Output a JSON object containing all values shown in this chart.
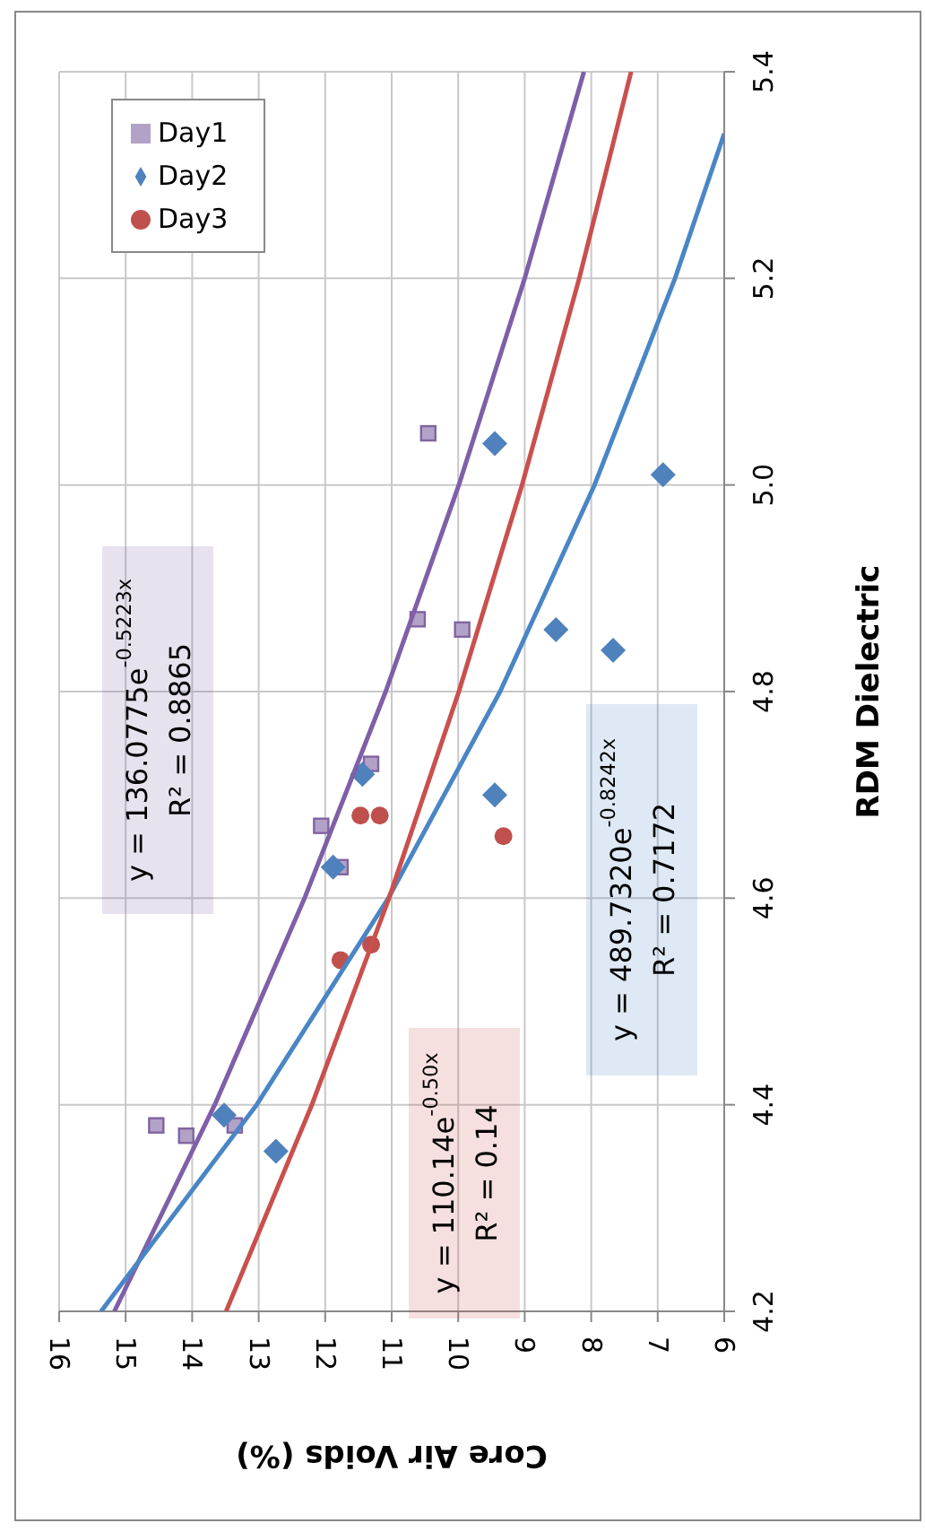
{
  "chart_data": {
    "type": "scatter",
    "xlabel": "Core Air Voids (%)",
    "ylabel": "RDM Dielectric",
    "xlim": [
      16,
      6
    ],
    "xticks": [
      16,
      15,
      14,
      13,
      12,
      11,
      10,
      9,
      8,
      7,
      6
    ],
    "ylim": [
      4.2,
      5.4
    ],
    "yticks": [
      4.2,
      4.4,
      4.6,
      4.8,
      {
        "value": 5,
        "label": "5.0"
      },
      5.2,
      5.4
    ],
    "grid": true,
    "legend": "top left",
    "series": [
      {
        "name": "Day1",
        "marker": "square",
        "color": "#b3a2c7",
        "x": [
          10.45,
          10.61,
          9.94,
          11.31,
          12.06,
          11.77,
          14.54,
          14.09,
          13.36
        ],
        "values": [
          5.05,
          4.87,
          4.86,
          4.73,
          4.67,
          4.63,
          4.38,
          4.37,
          4.38
        ]
      },
      {
        "name": "Day2",
        "marker": "diamond",
        "color": "#4f81bd",
        "x": [
          9.45,
          6.92,
          8.53,
          7.67,
          11.44,
          9.45,
          11.88,
          13.52,
          12.74
        ],
        "values": [
          5.04,
          5.01,
          4.86,
          4.84,
          4.72,
          4.7,
          4.63,
          4.39,
          4.355
        ]
      },
      {
        "name": "Day3",
        "marker": "circle",
        "color": "#c0504d",
        "x": [
          11.47,
          11.18,
          9.32,
          11.77,
          11.31
        ],
        "values": [
          4.68,
          4.68,
          4.66,
          4.54,
          4.555
        ]
      },
      {
        "type": "line",
        "marker": "none",
        "color": "#7f5fa8",
        "x": [
          15.17,
          13.66,
          12.31,
          11.09,
          9.99,
          9.0,
          8.11
        ],
        "values": [
          4.2,
          4.4,
          4.6,
          4.8,
          5.0,
          5.2,
          5.4
        ]
      },
      {
        "type": "line",
        "marker": "none",
        "color": "#4a86c5",
        "x": [
          15.37,
          13.03,
          11.05,
          9.37,
          7.95,
          6.74,
          6.0
        ],
        "values": [
          4.2,
          4.4,
          4.6,
          4.8,
          5.0,
          5.2,
          5.34
        ]
      },
      {
        "type": "line",
        "marker": "none",
        "color": "#c9504d",
        "x": [
          13.49,
          12.2,
          11.04,
          9.99,
          9.04,
          8.18,
          7.4
        ],
        "values": [
          4.2,
          4.4,
          4.6,
          4.8,
          5.0,
          5.2,
          5.4
        ]
      }
    ],
    "annotations": [
      "y = 136.0775e$^{-0.5223x}$\nR² = 0.8865",
      "y = 110.14e$^{-0.50x}$\nR² = 0.14",
      "y = 489.7320e$^{-0.8242x}$\nR² = 0.7172"
    ]
  }
}
